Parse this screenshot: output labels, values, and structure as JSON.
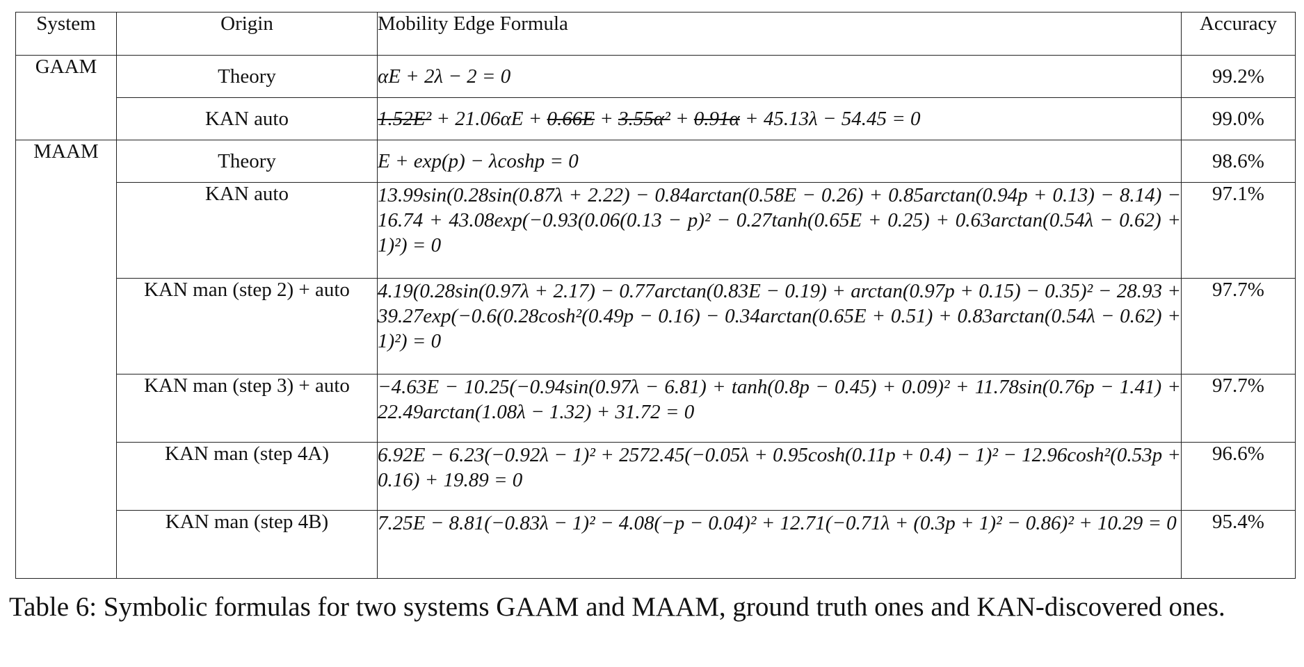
{
  "table": {
    "headers": {
      "system": "System",
      "origin": "Origin",
      "formula": "Mobility Edge Formula",
      "accuracy": "Accuracy"
    },
    "groups": [
      {
        "system": "GAAM",
        "rows": [
          {
            "origin": "Theory",
            "formula": "αE + 2λ − 2 = 0",
            "accuracy": "99.2%"
          },
          {
            "origin": "KAN auto",
            "formula_parts": [
              {
                "text": "1.52E²",
                "struck": true
              },
              {
                "text": " + 21.06αE + ",
                "struck": false
              },
              {
                "text": "0.66E",
                "struck": true
              },
              {
                "text": " + ",
                "struck": false
              },
              {
                "text": "3.55α²",
                "struck": true
              },
              {
                "text": " + ",
                "struck": false
              },
              {
                "text": "0.91α",
                "struck": true
              },
              {
                "text": " + 45.13λ − 54.45 = 0",
                "struck": false
              }
            ],
            "accuracy": "99.0%"
          }
        ]
      },
      {
        "system": "MAAM",
        "rows": [
          {
            "origin": "Theory",
            "formula": "E + exp(p) − λcoshp = 0",
            "accuracy": "98.6%"
          },
          {
            "origin": "KAN auto",
            "formula": "13.99sin(0.28sin(0.87λ + 2.22) − 0.84arctan(0.58E − 0.26) + 0.85arctan(0.94p + 0.13) − 8.14) − 16.74 + 43.08exp(−0.93(0.06(0.13 − p)² − 0.27tanh(0.65E + 0.25) + 0.63arctan(0.54λ − 0.62) + 1)²) = 0",
            "accuracy": "97.1%"
          },
          {
            "origin": "KAN man (step 2) + auto",
            "formula": "4.19(0.28sin(0.97λ + 2.17) − 0.77arctan(0.83E − 0.19) + arctan(0.97p + 0.15) − 0.35)² − 28.93 + 39.27exp(−0.6(0.28cosh²(0.49p − 0.16) − 0.34arctan(0.65E + 0.51) + 0.83arctan(0.54λ − 0.62) + 1)²) = 0",
            "accuracy": "97.7%"
          },
          {
            "origin": "KAN man (step 3) + auto",
            "formula": "−4.63E − 10.25(−0.94sin(0.97λ − 6.81) + tanh(0.8p − 0.45) + 0.09)² + 11.78sin(0.76p − 1.41) + 22.49arctan(1.08λ − 1.32) + 31.72 = 0",
            "accuracy": "97.7%"
          },
          {
            "origin": "KAN man (step 4A)",
            "formula": "6.92E − 6.23(−0.92λ − 1)² + 2572.45(−0.05λ + 0.95cosh(0.11p + 0.4) − 1)² − 12.96cosh²(0.53p + 0.16) + 19.89 = 0",
            "accuracy": "96.6%"
          },
          {
            "origin": "KAN man (step 4B)",
            "formula": "7.25E − 8.81(−0.83λ − 1)² − 4.08(−p − 0.04)² + 12.71(−0.71λ + (0.3p + 1)² − 0.86)² + 10.29 = 0",
            "accuracy": "95.4%"
          }
        ]
      }
    ]
  },
  "caption": "Table 6: Symbolic formulas for two systems GAAM and MAAM, ground truth ones and KAN-discovered ones."
}
